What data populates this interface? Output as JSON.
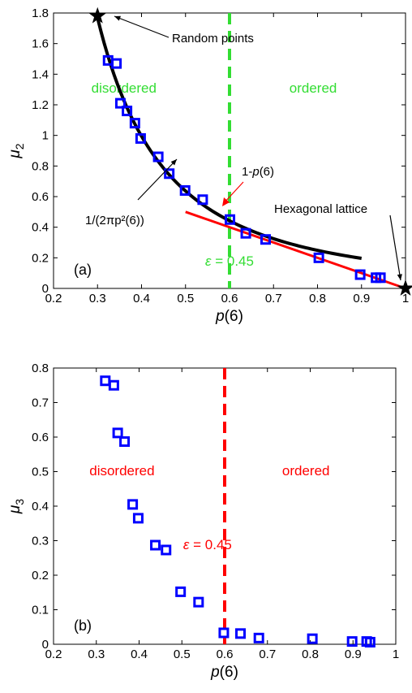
{
  "chart_data": [
    {
      "type": "scatter",
      "panel_label": "(a)",
      "xlabel_italic": "p",
      "xlabel_rest": "(6)",
      "ylabel_base": "μ",
      "ylabel_sub": "2",
      "xlim": [
        0.2,
        1.0
      ],
      "ylim": [
        0,
        1.8
      ],
      "xticks": [
        "0.2",
        "0.3",
        "0.4",
        "0.5",
        "0.6",
        "0.7",
        "0.8",
        "0.9",
        "1"
      ],
      "yticks": [
        "0",
        "0.2",
        "0.4",
        "0.6",
        "0.8",
        "1",
        "1.2",
        "1.4",
        "1.6",
        "1.8"
      ],
      "colors": {
        "markers": "#0000ff",
        "fit_curve": "#000000",
        "linear": "#ff0000",
        "threshold": "#33dd33",
        "region_text": "#33dd33"
      },
      "markers": {
        "x": [
          0.324,
          0.343,
          0.352,
          0.367,
          0.385,
          0.398,
          0.438,
          0.463,
          0.499,
          0.539,
          0.601,
          0.637,
          0.682,
          0.803,
          0.897,
          0.933,
          0.943
        ],
        "y": [
          1.49,
          1.47,
          1.21,
          1.16,
          1.08,
          0.98,
          0.86,
          0.75,
          0.64,
          0.58,
          0.45,
          0.36,
          0.32,
          0.2,
          0.09,
          0.07,
          0.07
        ]
      },
      "fit_curve": {
        "label": "1/(2πp²(6))",
        "x_range": [
          0.3,
          0.9
        ]
      },
      "linear_line": {
        "label_prefix": "1-",
        "label_italic": "p",
        "label_suffix": "(6)",
        "x_range": [
          0.5,
          1.0
        ]
      },
      "threshold": {
        "x": 0.6,
        "label_italic": "ε",
        "label_rest": " = 0.45"
      },
      "stars": [
        {
          "x": 0.3,
          "y": 1.78
        },
        {
          "x": 1.0,
          "y": 0.0
        }
      ],
      "annotations": {
        "random_points": "Random points",
        "hexagonal": "Hexagonal lattice"
      },
      "regions": {
        "left": "disordered",
        "right": "ordered"
      }
    },
    {
      "type": "scatter",
      "panel_label": "(b)",
      "xlabel_italic": "p",
      "xlabel_rest": "(6)",
      "ylabel_base": "μ",
      "ylabel_sub": "3",
      "xlim": [
        0.2,
        1.0
      ],
      "ylim": [
        0,
        0.8
      ],
      "xticks": [
        "0.2",
        "0.3",
        "0.4",
        "0.5",
        "0.6",
        "0.7",
        "0.8",
        "0.9",
        "1"
      ],
      "yticks": [
        "0",
        "0.1",
        "0.2",
        "0.3",
        "0.4",
        "0.5",
        "0.6",
        "0.7",
        "0.8"
      ],
      "colors": {
        "markers": "#0000ff",
        "threshold": "#ff0000",
        "region_text": "#ff0000"
      },
      "markers": {
        "x": [
          0.321,
          0.341,
          0.35,
          0.366,
          0.385,
          0.398,
          0.438,
          0.463,
          0.497,
          0.539,
          0.598,
          0.637,
          0.68,
          0.805,
          0.898,
          0.932,
          0.94
        ],
        "y": [
          0.763,
          0.75,
          0.612,
          0.587,
          0.405,
          0.365,
          0.287,
          0.273,
          0.152,
          0.122,
          0.033,
          0.031,
          0.018,
          0.016,
          0.008,
          0.008,
          0.006
        ]
      },
      "threshold": {
        "x": 0.6,
        "label_italic": "ε",
        "label_rest": " = 0.45"
      },
      "regions": {
        "left": "disordered",
        "right": "ordered"
      }
    }
  ]
}
